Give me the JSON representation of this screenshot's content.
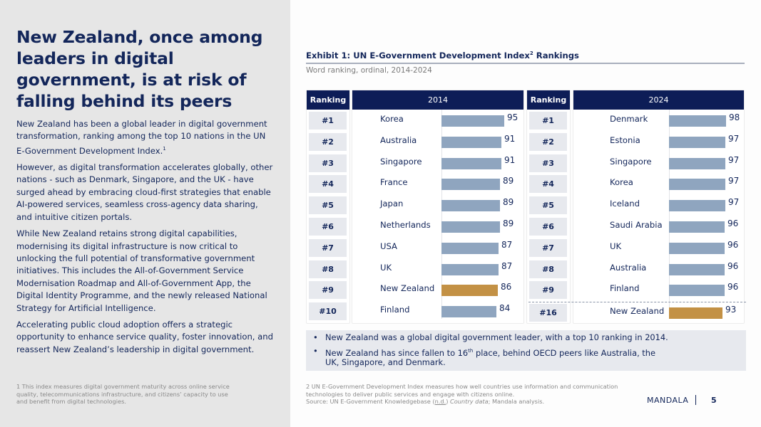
{
  "left": {
    "headline": "New Zealand, once among leaders in digital government, is at risk of falling behind its peers",
    "paragraphs": {
      "p1": "New Zealand has been a global leader in digital government transformation, ranking among the top 10 nations in the UN E-Government Development Index.",
      "p1_sup": "1",
      "p2": "However, as digital transformation accelerates globally, other nations - such as Denmark, Singapore, and the UK - have surged ahead by embracing cloud-first strategies that enable AI-powered services, seamless cross-agency data sharing, and intuitive citizen portals.",
      "p3": "While New Zealand retains strong digital capabilities, modernising its digital infrastructure is now critical to unlocking the full potential of transformative government initiatives. This includes the All-of-Government Service Modernisation Roadmap and All-of-Government App, the Digital Identity Programme, and the newly released National Strategy for Artificial Intelligence.",
      "p4": "Accelerating public cloud adoption offers a strategic opportunity to enhance service quality, foster innovation, and reassert New Zealand’s leadership in digital government."
    },
    "footnote": "1 This index measures digital government maturity across online service quality, telecommunications infrastructure, and citizens’ capacity to use and benefit from digital technologies."
  },
  "exhibit": {
    "title": "Exhibit 1: UN E-Government Development Index",
    "title_sup": "2",
    "title_suffix": " Rankings",
    "subtitle": "Word ranking, ordinal, 2014-2024"
  },
  "chart_data": [
    {
      "type": "bar",
      "title": "2014",
      "rank_header": "Ranking",
      "ranks": [
        "#1",
        "#2",
        "#3",
        "#4",
        "#5",
        "#6",
        "#7",
        "#8",
        "#9",
        "#10"
      ],
      "categories": [
        "Korea",
        "Australia",
        "Singapore",
        "France",
        "Japan",
        "Netherlands",
        "USA",
        "UK",
        "New Zealand",
        "Finland"
      ],
      "values": [
        95,
        91,
        91,
        89,
        89,
        89,
        87,
        87,
        86,
        84
      ],
      "highlight": "New Zealand",
      "colors": {
        "default": "#8fa5bf",
        "highlight": "#c39145"
      },
      "orientation": "horizontal"
    },
    {
      "type": "bar",
      "title": "2024",
      "rank_header": "Ranking",
      "ranks": [
        "#1",
        "#2",
        "#3",
        "#4",
        "#5",
        "#6",
        "#7",
        "#8",
        "#9",
        "#16"
      ],
      "categories": [
        "Denmark",
        "Estonia",
        "Singapore",
        "Korea",
        "Iceland",
        "Saudi Arabia",
        "UK",
        "Australia",
        "Finland",
        "New Zealand"
      ],
      "values": [
        98,
        97,
        97,
        97,
        97,
        96,
        96,
        96,
        96,
        93
      ],
      "highlight": "New Zealand",
      "colors": {
        "default": "#8fa5bf",
        "highlight": "#c39145"
      },
      "orientation": "horizontal"
    }
  ],
  "takeaways": {
    "b1": "New Zealand was a global digital government leader, with a top 10 ranking in 2014.",
    "b2_pre": "New Zealand has since fallen to 16",
    "b2_sup": "th",
    "b2_post": " place, behind OECD peers like Australia, the UK, Singapore, and Denmark."
  },
  "footnote_right": {
    "line1": "2 UN E-Government Development Index measures how well countries use information and communication technologies to deliver public services and engage with citizens online.",
    "source_pre": "Source: UN E-Government Knowledgebase (",
    "source_nd": "n.d.",
    "source_mid": ") ",
    "source_em": "Country data",
    "source_post": "; Mandala analysis."
  },
  "footer": {
    "brand": "MANDALA",
    "page": "5"
  }
}
